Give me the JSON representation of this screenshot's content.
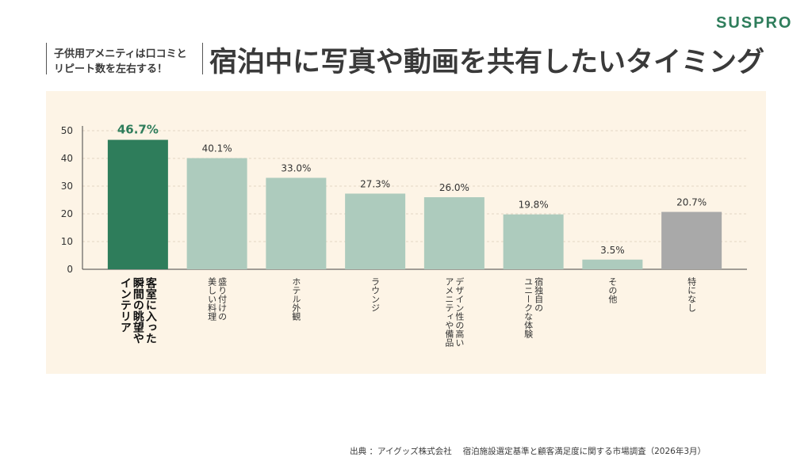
{
  "brand": "SUSPRO",
  "subtitle": [
    "子供用アメニティは口コミと",
    "リピート数を左右する！"
  ],
  "title": "宿泊中に写真や動画を共有したいタイミング",
  "source": "出典 ：アイグッズ株式会社　 宿泊施設選定基準と顧客満足度に関する市場調査（2026年3月）",
  "colors": {
    "highlight": "#2e7d5b",
    "normal": "#adcbbd",
    "none": "#a9a9a9",
    "panel": "#fdf4e6"
  },
  "chart_data": {
    "type": "bar",
    "categories": [
      "客室に入った瞬間の眺望やインテリア",
      "盛り付けの美しい料理",
      "ホテル外観",
      "ラウンジ",
      "デザイン性の高いアメニティや備品",
      "宿独自のユニークな体験",
      "その他",
      "特になし"
    ],
    "category_lines": [
      [
        "客室に入った",
        "瞬間の眺望や",
        "インテリア"
      ],
      [
        "盛り付けの",
        "美しい料理"
      ],
      [
        "ホテル外観"
      ],
      [
        "ラウンジ"
      ],
      [
        "デザイン性の高い",
        "アメニティや備品"
      ],
      [
        "宿独自の",
        "ユニークな体験"
      ],
      [
        "その他"
      ],
      [
        "特になし"
      ]
    ],
    "values": [
      46.7,
      40.1,
      33.0,
      27.3,
      26.0,
      19.8,
      3.5,
      20.7
    ],
    "value_labels": [
      "46.7%",
      "40.1%",
      "33.0%",
      "27.3%",
      "26.0%",
      "19.8%",
      "3.5%",
      "20.7%"
    ],
    "bar_styles": [
      "highlight",
      "normal",
      "normal",
      "normal",
      "normal",
      "normal",
      "normal",
      "none"
    ],
    "yticks": [
      0,
      10,
      20,
      30,
      40,
      50
    ],
    "ylim": [
      0,
      50
    ],
    "grid": true
  }
}
